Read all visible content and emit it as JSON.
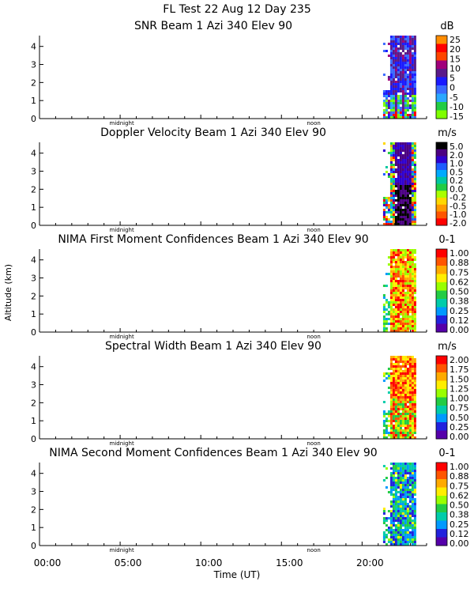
{
  "figure": {
    "title_line1": "FL Test  22 Aug 12 Day 235",
    "ylabel": "Altitude (km)",
    "xlabel": "Time (UT)",
    "x_ticks": [
      "00:00",
      "05:00",
      "10:00",
      "15:00",
      "20:00"
    ],
    "panel_markers": [
      "midnight",
      "noon"
    ]
  },
  "chart_data": [
    {
      "type": "heatmap",
      "title": "SNR Beam 1 Azi 340 Elev 90",
      "unit": "dB",
      "y_ticks": [
        "0",
        "1",
        "2",
        "3",
        "4"
      ],
      "ylim": [
        0,
        4.6
      ],
      "xlim": [
        0,
        24
      ],
      "data_time_range": [
        21.3,
        23.3
      ],
      "colorbar_labels": [
        "25",
        "20",
        "15",
        "10",
        "5",
        "0",
        "-5",
        "-10",
        "-15"
      ],
      "colors": [
        "#ff8c00",
        "#ff0000",
        "#ff4500",
        "#a0007a",
        "#5a1a8a",
        "#1a1aff",
        "#3a6aff",
        "#2aa8ff",
        "#22cc44",
        "#7fff00"
      ]
    },
    {
      "type": "heatmap",
      "title": "Doppler Velocity Beam 1 Azi 340 Elev 90",
      "unit": "m/s",
      "y_ticks": [
        "0",
        "1",
        "2",
        "3",
        "4"
      ],
      "ylim": [
        0,
        4.6
      ],
      "xlim": [
        0,
        24
      ],
      "data_time_range": [
        21.3,
        23.3
      ],
      "colorbar_labels": [
        "5.0",
        "2.0",
        "1.0",
        "0.5",
        "0.2",
        "0.0",
        "-0.2",
        "-0.5",
        "-1.0",
        "-2.0"
      ],
      "colors": [
        "#000000",
        "#4b0082",
        "#2f00d0",
        "#1e5cff",
        "#00aaff",
        "#00c8a0",
        "#22cc44",
        "#aaff00",
        "#ffd700",
        "#ff9900",
        "#ff5500",
        "#ff0000"
      ]
    },
    {
      "type": "heatmap",
      "title": "NIMA First Moment Confidences Beam 1 Azi 340 Elev 90",
      "unit": "0-1",
      "y_ticks": [
        "0",
        "1",
        "2",
        "3",
        "4"
      ],
      "ylim": [
        0,
        4.6
      ],
      "xlim": [
        0,
        24
      ],
      "data_time_range": [
        21.3,
        23.3
      ],
      "colorbar_labels": [
        "1.00",
        "0.88",
        "0.75",
        "0.62",
        "0.50",
        "0.38",
        "0.25",
        "0.12",
        "0.00"
      ],
      "colors": [
        "#ff0000",
        "#ff5500",
        "#ffaa00",
        "#ffee00",
        "#99ff00",
        "#22cc44",
        "#00ccaa",
        "#0099ff",
        "#2222dd",
        "#5500aa"
      ]
    },
    {
      "type": "heatmap",
      "title": "Spectral Width Beam 1 Azi 340 Elev 90",
      "unit": "m/s",
      "y_ticks": [
        "0",
        "1",
        "2",
        "3",
        "4"
      ],
      "ylim": [
        0,
        4.6
      ],
      "xlim": [
        0,
        24
      ],
      "data_time_range": [
        21.3,
        23.3
      ],
      "colorbar_labels": [
        "2.00",
        "1.75",
        "1.50",
        "1.25",
        "1.00",
        "0.75",
        "0.50",
        "0.25",
        "0.00"
      ],
      "colors": [
        "#ff0000",
        "#ff5500",
        "#ffaa00",
        "#ffee00",
        "#99ff00",
        "#22cc44",
        "#00ccaa",
        "#0099ff",
        "#2222dd",
        "#5500aa"
      ]
    },
    {
      "type": "heatmap",
      "title": "NIMA Second Moment Confidences Beam 1 Azi 340 Elev 90",
      "unit": "0-1",
      "y_ticks": [
        "0",
        "1",
        "2",
        "3",
        "4"
      ],
      "ylim": [
        0,
        4.6
      ],
      "xlim": [
        0,
        24
      ],
      "data_time_range": [
        21.3,
        23.3
      ],
      "colorbar_labels": [
        "1.00",
        "0.88",
        "0.75",
        "0.62",
        "0.50",
        "0.38",
        "0.25",
        "0.12",
        "0.00"
      ],
      "colors": [
        "#ff0000",
        "#ff5500",
        "#ffaa00",
        "#ffee00",
        "#99ff00",
        "#22cc44",
        "#00ccaa",
        "#0099ff",
        "#2222dd",
        "#5500aa"
      ]
    }
  ]
}
